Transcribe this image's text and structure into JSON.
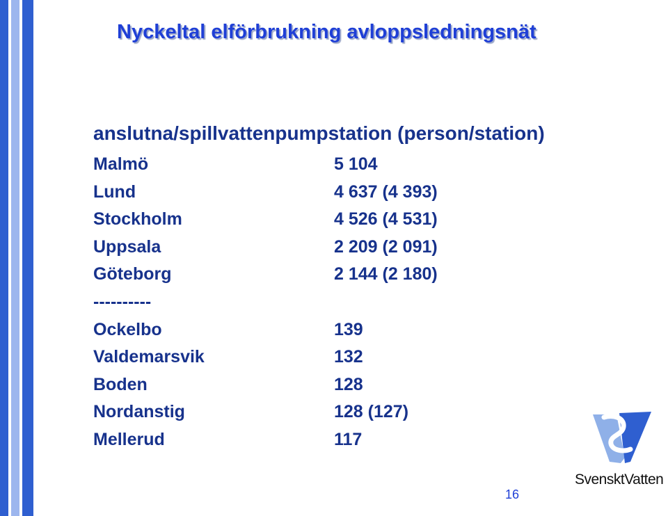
{
  "slide": {
    "title": "Nyckeltal elförbrukning avloppsledningsnät",
    "subtitle": "anslutna/spillvattenpumpstation (person/station)",
    "rows": [
      {
        "name": "Malmö",
        "value": "5 104"
      },
      {
        "name": "Lund",
        "value": "4 637 (4 393)"
      },
      {
        "name": "Stockholm",
        "value": "4 526 (4 531)"
      },
      {
        "name": "Uppsala",
        "value": "2 209 (2 091)"
      },
      {
        "name": "Göteborg",
        "value": "2 144 (2 180)"
      },
      {
        "name": "----------",
        "value": ""
      },
      {
        "name": "Ockelbo",
        "value": "139"
      },
      {
        "name": "Valdemarsvik",
        "value": "132"
      },
      {
        "name": "Boden",
        "value": "128"
      },
      {
        "name": "Nordanstig",
        "value": "128 (127)"
      },
      {
        "name": "Mellerud",
        "value": "117"
      }
    ],
    "page_number": "16",
    "logo_text": "SvensktVatten",
    "colors": {
      "title": "#1f3fd6",
      "text": "#17328c",
      "bar_dark": "#2f5fd0",
      "bar_light": "#9db6ee",
      "logo_light": "#8fb0e8",
      "logo_dark": "#2f5fd0"
    }
  }
}
